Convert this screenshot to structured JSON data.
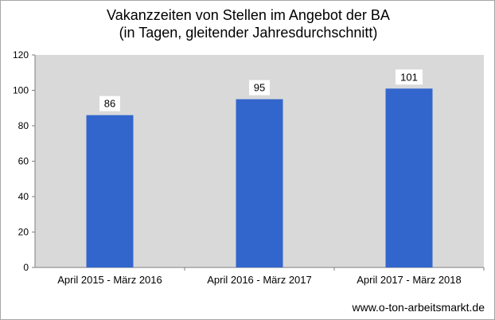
{
  "chart_data": {
    "type": "bar",
    "title_line1": "Vakanzzeiten von Stellen im Angebot der BA",
    "title_line2": "(in Tagen, gleitender Jahresdurchschnitt)",
    "categories": [
      "April 2015 - März 2016",
      "April 2016 - März 2017",
      "April 2017 - März 2018"
    ],
    "values": [
      86,
      95,
      101
    ],
    "value_labels": [
      "86",
      "95",
      "101"
    ],
    "yticks": [
      "0",
      "20",
      "40",
      "60",
      "80",
      "100",
      "120"
    ],
    "ylim": [
      0,
      120
    ],
    "xlabel": "",
    "ylabel": "",
    "grid": false,
    "bar_color": "#3366cc",
    "plot_background": "#d9d9d9"
  },
  "footer": {
    "source": "www.o-ton-arbeitsmarkt.de"
  }
}
